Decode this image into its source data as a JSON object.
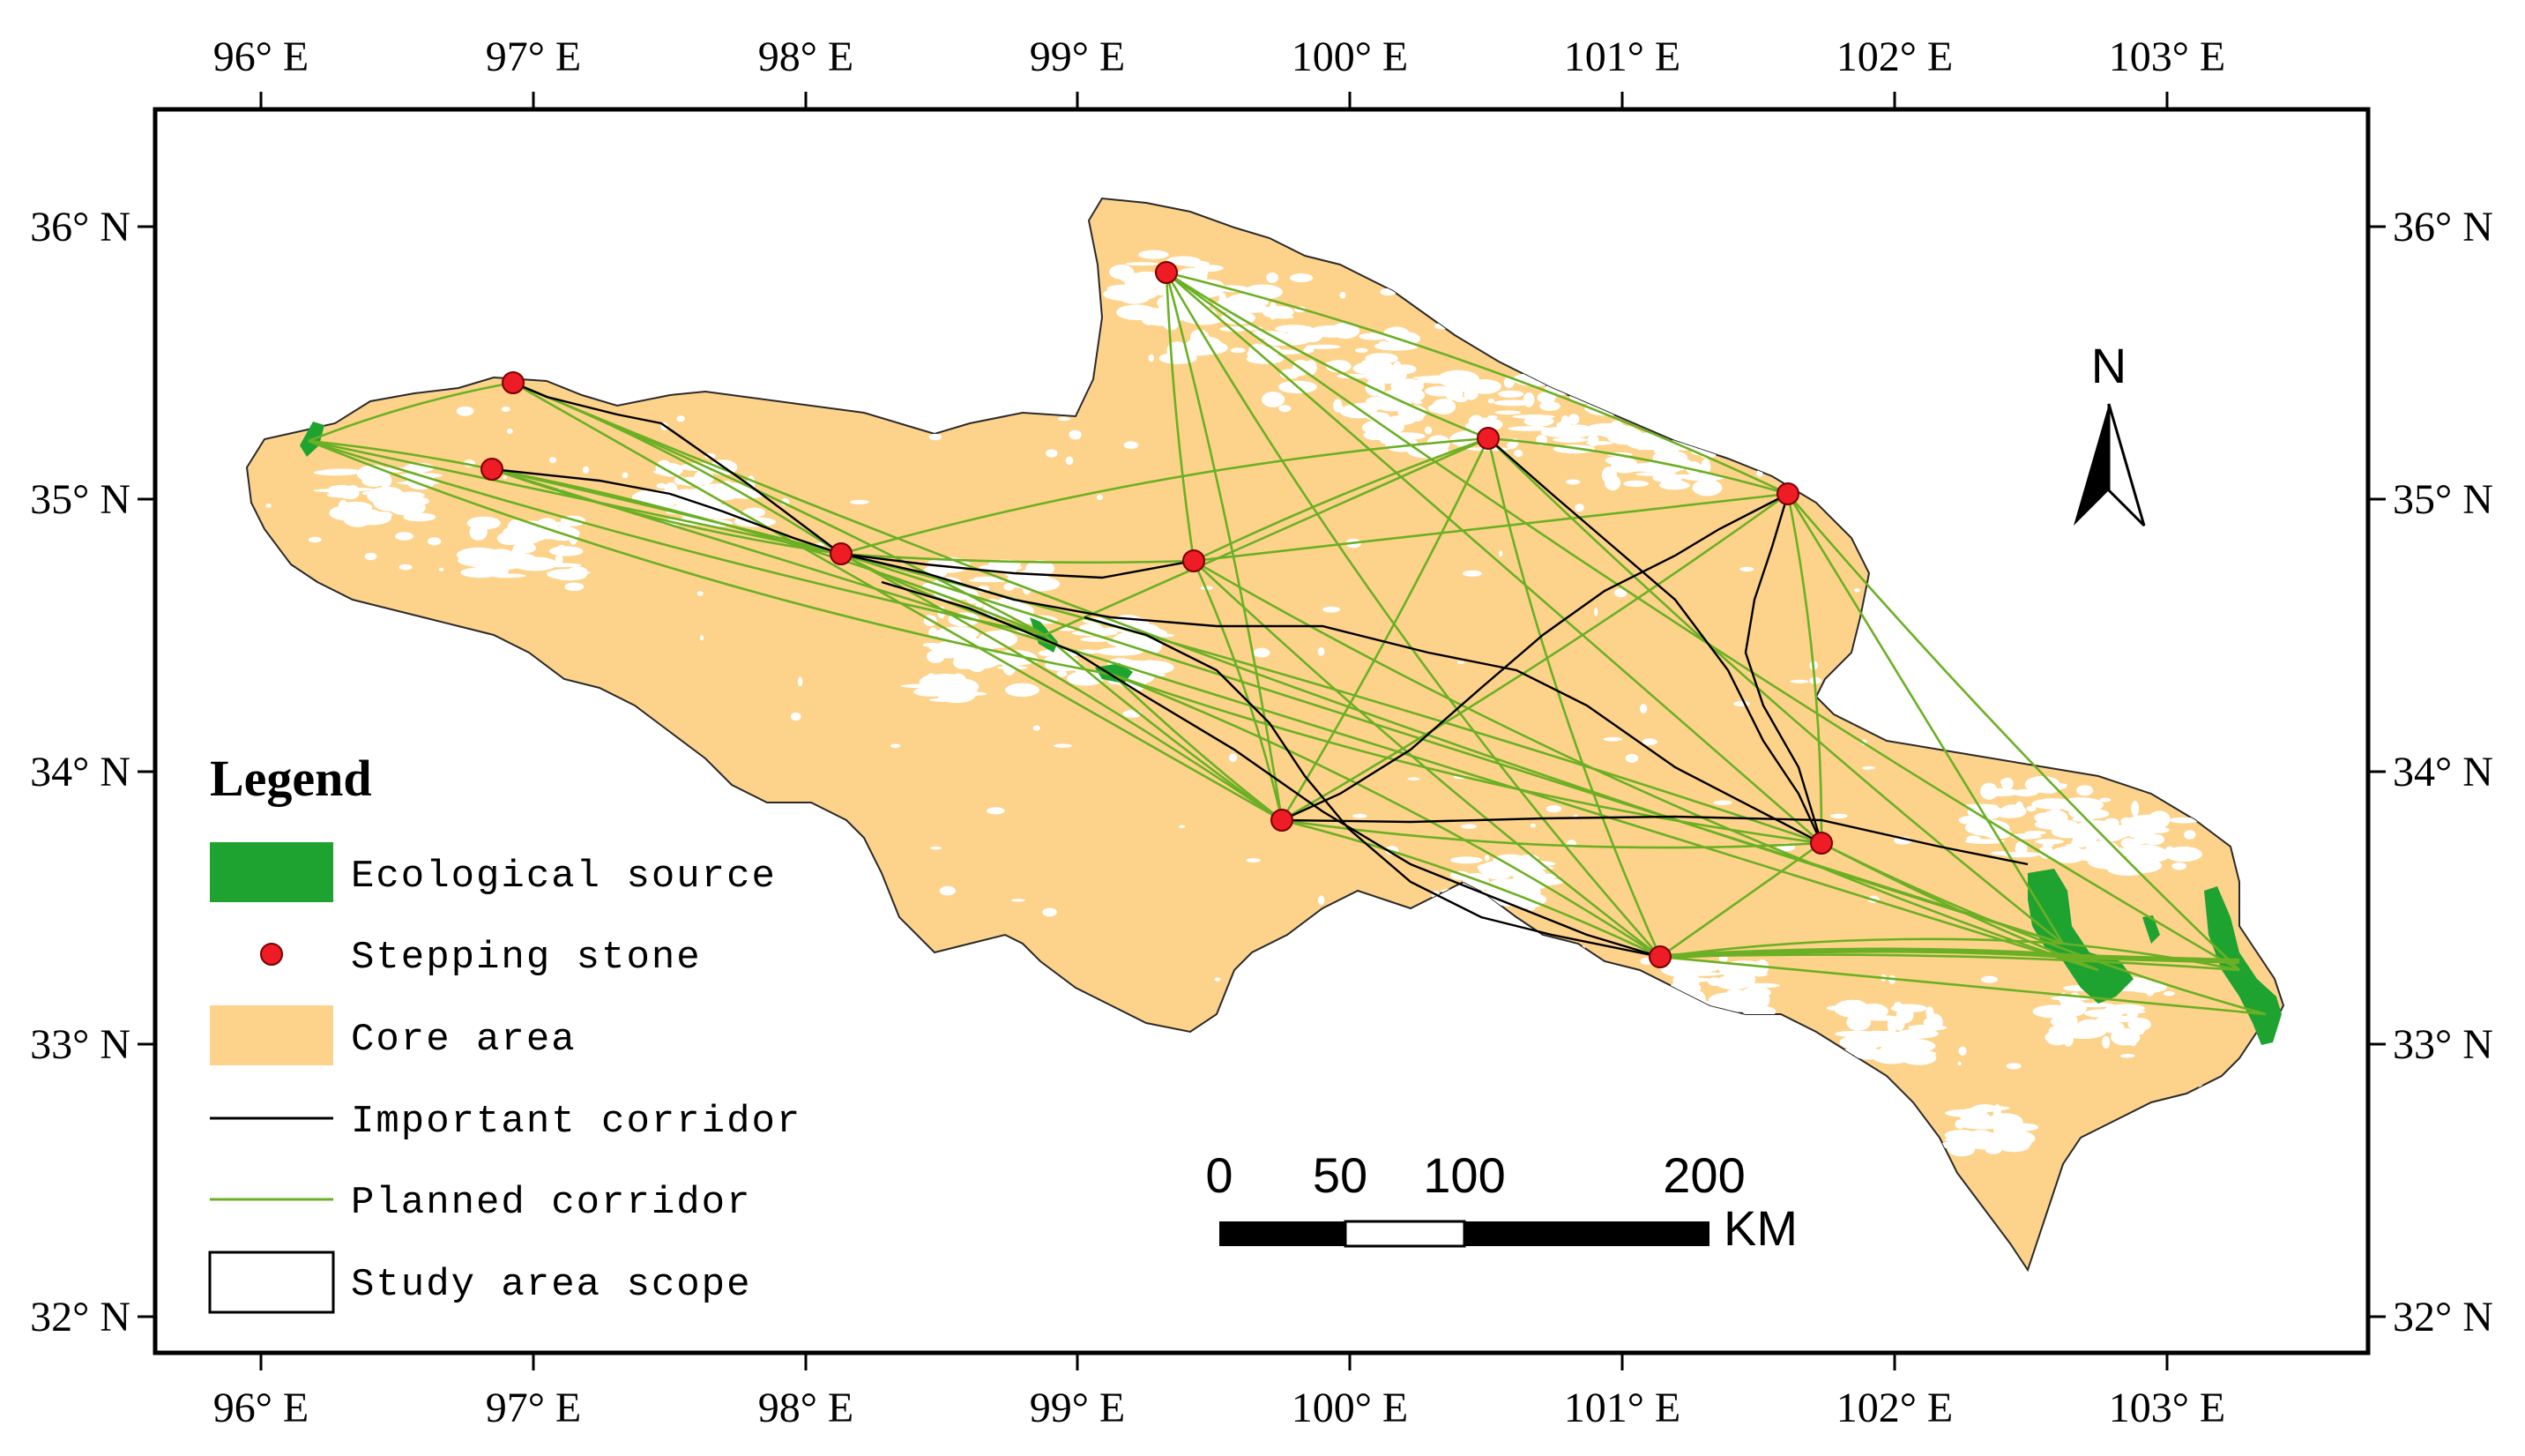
{
  "map": {
    "x_ticks": [
      "96° E",
      "97° E",
      "98° E",
      "99° E",
      "100° E",
      "101° E",
      "102° E",
      "103° E"
    ],
    "y_ticks": [
      "36° N",
      "35° N",
      "34° N",
      "33° N",
      "32° N"
    ],
    "colors": {
      "core_area": "#fdd38b",
      "ecological_source": "#1fa330",
      "stepping_stone": "#ee1c24",
      "important_corridor": "#000000",
      "planned_corridor": "#6bb024"
    }
  },
  "legend": {
    "title": "Legend",
    "items": [
      {
        "label": "Ecological source",
        "icon": "green-rect"
      },
      {
        "label": "Stepping stone",
        "icon": "red-dot"
      },
      {
        "label": "Core area",
        "icon": "tan-rect"
      },
      {
        "label": "Important corridor",
        "icon": "black-line"
      },
      {
        "label": "Planned corridor",
        "icon": "green-line"
      },
      {
        "label": "Study area scope",
        "icon": "outline-rect"
      }
    ]
  },
  "scale_bar": {
    "labels": [
      "0",
      "50",
      "100",
      "200"
    ],
    "unit": "KM"
  },
  "north_arrow": {
    "label": "N"
  }
}
